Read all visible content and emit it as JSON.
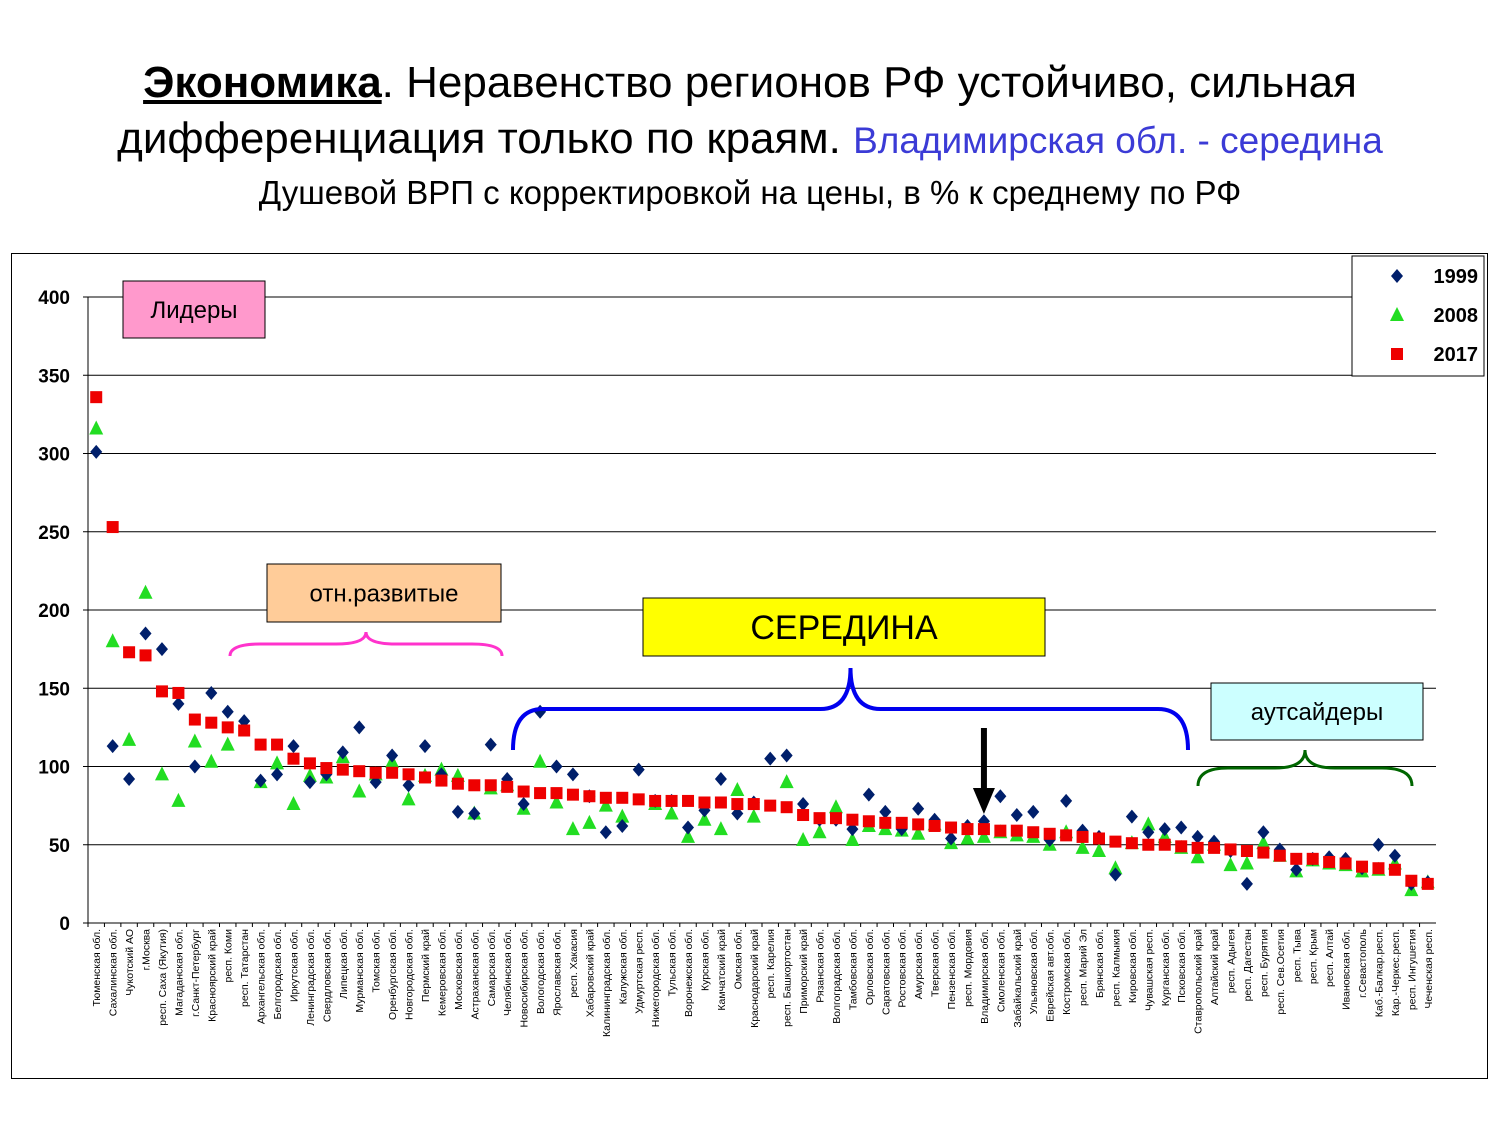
{
  "title": {
    "bold": "Экономика",
    "rest": ". Неравенство регионов РФ устойчиво, сильная дифференциация только по краям.",
    "accent": "Владимирская обл. - середина"
  },
  "subtitle": "Душевой ВРП с корректировкой на цены, в % к среднему по РФ",
  "colors": {
    "s1999": "#001f6b",
    "s2008": "#22dd22",
    "s2017": "#ee0000",
    "pink": "#ff99cc",
    "peach": "#ffcc99",
    "yellow": "#ffff00",
    "cyan": "#ccffff",
    "magenta": "#ff33cc",
    "blue": "#0000ee",
    "green": "#006600"
  },
  "annotations": {
    "leaders": "Лидеры",
    "developed": "отн.развитые",
    "middle": "СЕРЕДИНА",
    "outsiders": "аутсайдеры"
  },
  "chart_data": {
    "type": "scatter",
    "ylim": [
      0,
      400
    ],
    "yticks": [
      0,
      50,
      100,
      150,
      200,
      250,
      300,
      350,
      400
    ],
    "legend": "top-right",
    "grid": true,
    "categories": [
      "Тюменская обл.",
      "Сахалинская обл.",
      "Чукотский АО",
      "г.Москва",
      "респ. Саха (Якутия)",
      "Магаданская обл.",
      "г.Санкт-Петербург",
      "Красноярский край",
      "респ. Коми",
      "респ. Татарстан",
      "Архангельская обл.",
      "Белгородская обл.",
      "Иркутская обл.",
      "Ленинградская обл.",
      "Свердловская обл.",
      "Липецкая обл.",
      "Мурманская обл.",
      "Томская обл.",
      "Оренбургская обл.",
      "Новгородская обл.",
      "Пермский край",
      "Кемеровская обл.",
      "Московская обл.",
      "Астраханская обл.",
      "Самарская обл.",
      "Челябинская обл.",
      "Новосибирская обл.",
      "Вологодская обл.",
      "Ярославская обл.",
      "респ. Хакасия",
      "Хабаровский край",
      "Калининградская обл.",
      "Калужская обл.",
      "Удмуртская респ.",
      "Нижегородская обл.",
      "Тульская обл.",
      "Воронежская обл.",
      "Курская обл.",
      "Камчатский край",
      "Омская обл.",
      "Краснодарский край",
      "респ. Карелия",
      "респ. Башкортостан",
      "Приморский край",
      "Рязанская обл.",
      "Волгоградская обл.",
      "Тамбовская обл.",
      "Орловская обл.",
      "Саратовская обл.",
      "Ростовская обл.",
      "Амурская обл.",
      "Тверская обл.",
      "Пензенская обл.",
      "респ. Мордовия",
      "Владимирская обл.",
      "Смоленская обл.",
      "Забайкальский край",
      "Ульяновская обл.",
      "Еврейская авт.обл.",
      "Костромская обл.",
      "респ. Марий Эл",
      "Брянская обл.",
      "респ. Калмыкия",
      "Кировская обл.",
      "Чувашская респ.",
      "Курганская обл.",
      "Псковская обл.",
      "Ставропольский край",
      "Алтайский край",
      "респ. Адыгея",
      "респ. Дагестан",
      "респ. Бурятия",
      "респ. Сев.Осетия",
      "респ. Тыва",
      "респ. Крым",
      "респ. Алтай",
      "Ивановская обл.",
      "г.Севастополь",
      "Каб.-Балкар.респ.",
      "Кар.-Черкес.респ.",
      "респ. Ингушетия",
      "Чеченская респ."
    ],
    "series": [
      {
        "name": "1999",
        "marker": "diamond",
        "values": [
          301,
          113,
          92,
          185,
          175,
          140,
          100,
          147,
          135,
          129,
          91,
          95,
          113,
          90,
          95,
          109,
          125,
          90,
          107,
          88,
          113,
          95,
          71,
          70,
          114,
          92,
          76,
          135,
          100,
          95,
          81,
          58,
          62,
          98,
          78,
          78,
          61,
          72,
          92,
          70,
          77,
          105,
          107,
          76,
          66,
          66,
          60,
          82,
          71,
          60,
          73,
          66,
          54,
          62,
          65,
          81,
          69,
          71,
          53,
          78,
          59,
          55,
          31,
          68,
          58,
          60,
          61,
          55,
          52,
          46,
          25,
          58,
          47,
          34,
          41,
          42,
          41,
          35,
          50,
          43,
          25,
          26
        ]
      },
      {
        "name": "2008",
        "marker": "triangle",
        "values": [
          316,
          180,
          117,
          211,
          95,
          78,
          116,
          103,
          114,
          null,
          90,
          102,
          76,
          94,
          93,
          106,
          84,
          95,
          103,
          79,
          94,
          98,
          94,
          70,
          86,
          88,
          73,
          103,
          77,
          60,
          64,
          75,
          68,
          null,
          76,
          70,
          55,
          66,
          60,
          85,
          68,
          null,
          90,
          53,
          58,
          74,
          53,
          62,
          60,
          59,
          57,
          63,
          51,
          54,
          55,
          58,
          56,
          55,
          50,
          58,
          48,
          46,
          35,
          51,
          63,
          55,
          48,
          42,
          50,
          37,
          38,
          51,
          43,
          33,
          40,
          38,
          37,
          33,
          34,
          38,
          21,
          26
        ]
      },
      {
        "name": "2017",
        "marker": "square",
        "values": [
          336,
          253,
          173,
          171,
          148,
          147,
          130,
          128,
          125,
          123,
          114,
          114,
          105,
          102,
          99,
          98,
          97,
          96,
          96,
          95,
          93,
          91,
          89,
          88,
          88,
          87,
          84,
          83,
          83,
          82,
          81,
          80,
          80,
          79,
          78,
          78,
          78,
          77,
          77,
          76,
          76,
          75,
          74,
          69,
          67,
          67,
          66,
          65,
          64,
          64,
          63,
          62,
          61,
          60,
          60,
          59,
          59,
          58,
          57,
          56,
          55,
          54,
          52,
          51,
          50,
          50,
          49,
          48,
          48,
          47,
          46,
          45,
          43,
          41,
          41,
          39,
          38,
          36,
          35,
          34,
          27,
          25
        ]
      }
    ]
  }
}
